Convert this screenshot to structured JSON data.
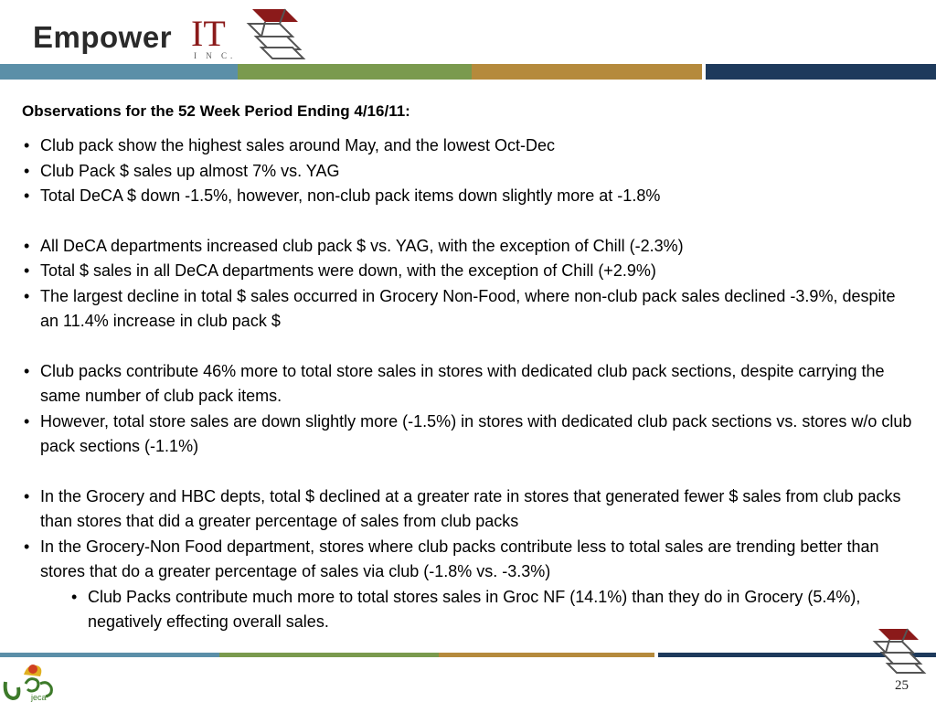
{
  "header": {
    "logo_brand": "Empower",
    "logo_it": "IT",
    "logo_inc": "I N C."
  },
  "colors": {
    "band_blue": "#5b8fa8",
    "band_green": "#7a9a4e",
    "band_gold": "#b58a3c",
    "band_navy": "#1e3a5c",
    "logo_red": "#8b1a1a"
  },
  "slide": {
    "title": "Observations for the 52 Week Period Ending 4/16/11:",
    "bullets": [
      {
        "text": "Club pack show the highest sales around May, and the lowest Oct-Dec",
        "level": 1,
        "spaced": false
      },
      {
        "text": "Club Pack $ sales up almost 7% vs. YAG",
        "level": 1,
        "spaced": false
      },
      {
        "text": "Total DeCA $ down -1.5%, however, non-club pack items down slightly more at -1.8%",
        "level": 1,
        "spaced": false
      },
      {
        "text": "All DeCA departments increased club pack $ vs. YAG, with the exception of Chill (-2.3%)",
        "level": 1,
        "spaced": true
      },
      {
        "text": "Total $ sales in all DeCA departments were down, with the exception of Chill (+2.9%)",
        "level": 1,
        "spaced": false
      },
      {
        "text": "The largest decline in total $ sales occurred in Grocery Non-Food, where non-club pack sales declined -3.9%, despite an 11.4% increase in club pack $",
        "level": 1,
        "spaced": false
      },
      {
        "text": "Club packs contribute 46% more to total store sales in stores with dedicated club pack sections, despite carrying the same number of club pack items.",
        "level": 1,
        "spaced": true
      },
      {
        "text": "However, total store sales are down slightly more (-1.5%) in stores with dedicated club pack sections vs. stores w/o club pack sections (-1.1%)",
        "level": 1,
        "spaced": false
      },
      {
        "text": "In the Grocery and HBC depts, total $ declined at a greater rate in stores that generated fewer $ sales from club packs than stores that did a greater percentage of sales from club packs",
        "level": 1,
        "spaced": true
      },
      {
        "text": "In the Grocery-Non Food department, stores where club packs contribute less to total sales are trending better than stores that do a greater percentage of sales via club (-1.8% vs. -3.3%)",
        "level": 1,
        "spaced": false
      },
      {
        "text": "Club Packs contribute much more to total stores sales in Groc NF (14.1%) than they do in Grocery (5.4%), negatively effecting overall sales.",
        "level": 2,
        "spaced": false
      }
    ]
  },
  "footer": {
    "page_number": "25",
    "partner_logo_text": "jeca"
  }
}
